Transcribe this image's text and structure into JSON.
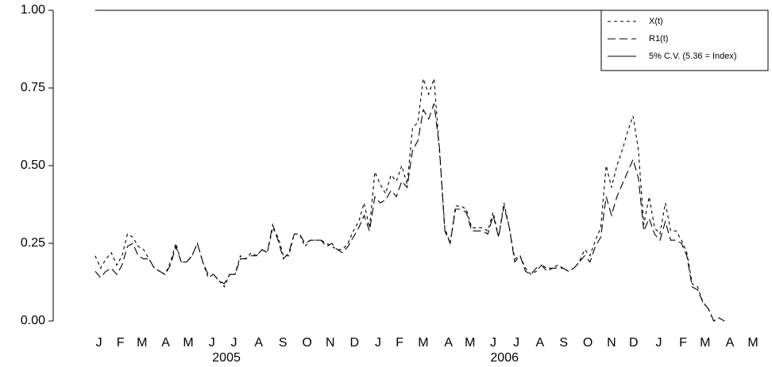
{
  "chart_data": {
    "type": "line",
    "x": [
      1,
      2,
      3,
      4,
      5,
      6,
      7,
      8,
      9,
      10,
      11,
      12,
      13,
      14,
      15,
      16,
      17,
      18,
      19,
      20,
      21,
      22,
      23,
      24,
      25,
      26,
      27,
      28,
      29,
      30,
      31,
      32,
      33,
      34,
      35,
      36,
      37,
      38,
      39,
      40,
      41,
      42,
      43,
      44,
      45,
      46,
      47,
      48,
      49,
      50,
      51,
      52,
      53,
      54,
      55,
      56,
      57,
      58,
      59,
      60,
      61,
      62,
      63,
      64,
      65,
      66,
      67,
      68,
      69,
      70,
      71,
      72,
      73,
      74,
      75,
      76,
      77,
      78,
      79,
      80,
      81,
      82,
      83,
      84,
      85,
      86,
      87,
      88,
      89,
      90,
      91,
      92,
      93,
      94,
      95,
      96,
      97,
      98,
      99,
      100,
      101,
      102,
      103,
      104,
      105,
      106,
      107,
      108,
      109,
      110,
      111,
      112,
      113,
      114,
      115,
      116,
      117,
      118
    ],
    "series": [
      {
        "name": "X(t)",
        "color": "#000000",
        "dash": "4,4",
        "values": [
          0.21,
          0.17,
          0.2,
          0.22,
          0.18,
          0.21,
          0.28,
          0.27,
          0.24,
          0.23,
          0.2,
          0.17,
          0.16,
          0.15,
          0.19,
          0.25,
          0.19,
          0.19,
          0.21,
          0.25,
          0.19,
          0.14,
          0.15,
          0.13,
          0.11,
          0.15,
          0.15,
          0.21,
          0.2,
          0.22,
          0.21,
          0.23,
          0.22,
          0.3,
          0.27,
          0.21,
          0.21,
          0.28,
          0.28,
          0.24,
          0.26,
          0.26,
          0.26,
          0.25,
          0.24,
          0.23,
          0.23,
          0.25,
          0.29,
          0.32,
          0.38,
          0.3,
          0.48,
          0.44,
          0.41,
          0.47,
          0.45,
          0.5,
          0.44,
          0.62,
          0.64,
          0.78,
          0.73,
          0.78,
          0.55,
          0.3,
          0.25,
          0.37,
          0.37,
          0.36,
          0.3,
          0.3,
          0.3,
          0.29,
          0.35,
          0.27,
          0.38,
          0.3,
          0.2,
          0.21,
          0.17,
          0.15,
          0.16,
          0.18,
          0.17,
          0.17,
          0.18,
          0.17,
          0.16,
          0.17,
          0.19,
          0.23,
          0.21,
          0.26,
          0.3,
          0.5,
          0.43,
          0.5,
          0.55,
          0.61,
          0.66,
          0.55,
          0.31,
          0.4,
          0.3,
          0.28,
          0.38,
          0.29,
          0.29,
          0.26,
          0.22,
          0.12,
          0.11,
          0.06,
          0.04,
          0.0,
          0.01,
          0.0
        ]
      },
      {
        "name": "R1(t)",
        "color": "#000000",
        "dash": "10,5",
        "values": [
          0.16,
          0.14,
          0.16,
          0.17,
          0.15,
          0.18,
          0.24,
          0.25,
          0.21,
          0.2,
          0.2,
          0.17,
          0.16,
          0.15,
          0.18,
          0.24,
          0.19,
          0.19,
          0.21,
          0.25,
          0.19,
          0.15,
          0.15,
          0.13,
          0.12,
          0.15,
          0.15,
          0.2,
          0.2,
          0.21,
          0.21,
          0.23,
          0.22,
          0.31,
          0.26,
          0.2,
          0.22,
          0.28,
          0.28,
          0.25,
          0.26,
          0.26,
          0.26,
          0.24,
          0.25,
          0.23,
          0.22,
          0.24,
          0.27,
          0.3,
          0.34,
          0.29,
          0.4,
          0.38,
          0.39,
          0.42,
          0.4,
          0.45,
          0.43,
          0.55,
          0.58,
          0.68,
          0.65,
          0.7,
          0.56,
          0.29,
          0.25,
          0.36,
          0.36,
          0.35,
          0.29,
          0.29,
          0.29,
          0.28,
          0.34,
          0.27,
          0.37,
          0.3,
          0.19,
          0.21,
          0.16,
          0.15,
          0.17,
          0.18,
          0.16,
          0.17,
          0.17,
          0.17,
          0.16,
          0.17,
          0.19,
          0.21,
          0.19,
          0.24,
          0.27,
          0.4,
          0.34,
          0.4,
          0.44,
          0.48,
          0.52,
          0.46,
          0.29,
          0.33,
          0.28,
          0.26,
          0.32,
          0.26,
          0.26,
          0.25,
          0.21,
          0.11,
          0.1,
          0.06,
          0.04,
          0.0,
          0.01,
          0.0
        ]
      },
      {
        "name": "5% C.V. (5.36 = Index)",
        "color": "#000000",
        "dash": "none",
        "values": [
          1,
          1,
          1,
          1,
          1,
          1,
          1,
          1,
          1,
          1,
          1,
          1,
          1,
          1,
          1,
          1,
          1,
          1,
          1,
          1,
          1,
          1,
          1,
          1,
          1,
          1,
          1,
          1,
          1,
          1,
          1,
          1,
          1,
          1,
          1,
          1,
          1,
          1,
          1,
          1,
          1,
          1,
          1,
          1,
          1,
          1,
          1,
          1,
          1,
          1,
          1,
          1,
          1,
          1,
          1,
          1,
          1,
          1,
          1,
          1,
          1,
          1,
          1,
          1,
          1,
          1,
          1,
          1,
          1,
          1,
          1,
          1,
          1,
          1,
          1,
          1,
          1,
          1,
          1,
          1,
          1,
          1,
          1,
          1,
          1,
          1,
          1,
          1,
          1,
          1,
          1,
          1,
          1,
          1,
          1,
          1,
          1,
          1,
          1,
          1,
          1,
          1,
          1,
          1,
          1,
          1,
          1,
          1,
          1,
          1,
          1,
          1,
          1,
          1,
          1,
          1,
          1,
          1
        ]
      }
    ],
    "xlim": [
      -6.8,
      125.8
    ],
    "xticks": [
      {
        "value": 1.7,
        "label": "J"
      },
      {
        "value": 5.7,
        "label": "F"
      },
      {
        "value": 9.7,
        "label": "M"
      },
      {
        "value": 14.1,
        "label": "A"
      },
      {
        "value": 18.3,
        "label": "M"
      },
      {
        "value": 22.7,
        "label": "J"
      },
      {
        "value": 26.8,
        "label": "J"
      },
      {
        "value": 31.4,
        "label": "A"
      },
      {
        "value": 35.9,
        "label": "S"
      },
      {
        "value": 40.4,
        "label": "O"
      },
      {
        "value": 44.7,
        "label": "N"
      },
      {
        "value": 49.2,
        "label": "D"
      },
      {
        "value": 53.6,
        "label": "J"
      },
      {
        "value": 57.6,
        "label": "F"
      },
      {
        "value": 62.0,
        "label": "M"
      },
      {
        "value": 66.7,
        "label": "A"
      },
      {
        "value": 70.7,
        "label": "M"
      },
      {
        "value": 75.0,
        "label": "J"
      },
      {
        "value": 79.3,
        "label": "J"
      },
      {
        "value": 83.7,
        "label": "A"
      },
      {
        "value": 88.1,
        "label": "S"
      },
      {
        "value": 92.6,
        "label": "O"
      },
      {
        "value": 97.0,
        "label": "N"
      },
      {
        "value": 101.1,
        "label": "D"
      },
      {
        "value": 105.8,
        "label": "J"
      },
      {
        "value": 110.3,
        "label": "F"
      },
      {
        "value": 114.4,
        "label": "M"
      },
      {
        "value": 119.0,
        "label": "A"
      },
      {
        "value": 123.3,
        "label": "M"
      }
    ],
    "x_groups": [
      {
        "value": 25.4,
        "label": "2005"
      },
      {
        "value": 77.1,
        "label": "2006"
      }
    ],
    "ylim": [
      0,
      1
    ],
    "yticks": [
      {
        "value": 0,
        "label": "0.00"
      },
      {
        "value": 0.25,
        "label": "0.25"
      },
      {
        "value": 0.5,
        "label": "0.50"
      },
      {
        "value": 0.75,
        "label": "0.75"
      },
      {
        "value": 1,
        "label": "1.00"
      }
    ],
    "legend": "upper right"
  }
}
